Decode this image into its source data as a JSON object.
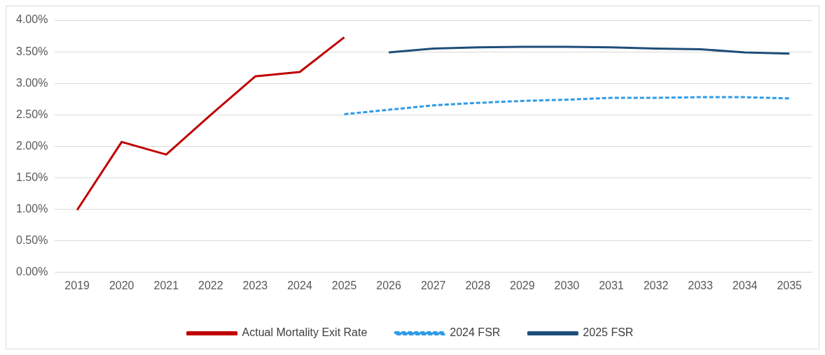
{
  "chart_data": {
    "type": "line",
    "categories": [
      "2019",
      "2020",
      "2021",
      "2022",
      "2023",
      "2024",
      "2025",
      "2026",
      "2027",
      "2028",
      "2029",
      "2030",
      "2031",
      "2032",
      "2033",
      "2034",
      "2035"
    ],
    "series": [
      {
        "name": "Actual Mortality Exit Rate",
        "color": "#c00000",
        "line_style": "solid",
        "values": [
          0.99,
          2.07,
          1.87,
          2.5,
          3.11,
          3.18,
          3.73,
          null,
          null,
          null,
          null,
          null,
          null,
          null,
          null,
          null,
          null
        ]
      },
      {
        "name": "2024 FSR",
        "color": "#2e9be6",
        "line_style": "dashed",
        "values": [
          null,
          null,
          null,
          null,
          null,
          null,
          2.51,
          2.58,
          2.65,
          2.69,
          2.72,
          2.74,
          2.77,
          2.77,
          2.78,
          2.78,
          2.76
        ]
      },
      {
        "name": "2025 FSR",
        "color": "#1f4e79",
        "line_style": "solid",
        "values": [
          null,
          null,
          null,
          null,
          null,
          null,
          null,
          3.49,
          3.55,
          3.57,
          3.58,
          3.58,
          3.57,
          3.55,
          3.54,
          3.49,
          3.47
        ]
      }
    ],
    "ylim": [
      0,
      4
    ],
    "yticks": [
      {
        "value": 0,
        "label": "0.00%"
      },
      {
        "value": 0.5,
        "label": "0.50%"
      },
      {
        "value": 1,
        "label": "1.00%"
      },
      {
        "value": 1.5,
        "label": "1.50%"
      },
      {
        "value": 2,
        "label": "2.00%"
      },
      {
        "value": 2.5,
        "label": "2.50%"
      },
      {
        "value": 3,
        "label": "3.00%"
      },
      {
        "value": 3.5,
        "label": "3.50%"
      },
      {
        "value": 4,
        "label": "4.00%"
      }
    ],
    "grid": "y",
    "legend": "bottom",
    "marker": "none"
  }
}
